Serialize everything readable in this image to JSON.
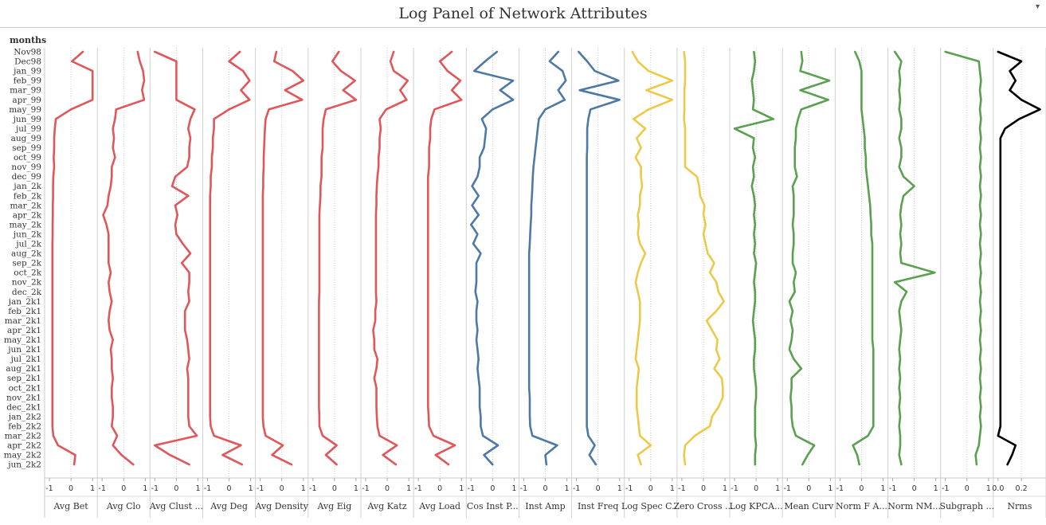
{
  "header": {
    "title": "Log Panel of Network Attributes",
    "row_field_label": "months"
  },
  "chart_data": {
    "type": "line",
    "title": "Log Panel of Network Attributes",
    "row_label": "months",
    "orientation": "vertical",
    "categories": [
      "Nov98",
      "Dec98",
      "jan_99",
      "feb_99",
      "mar_99",
      "apr_99",
      "may_99",
      "jun_99",
      "jul_99",
      "aug_99",
      "sep_99",
      "oct_99",
      "nov_99",
      "dec_99",
      "jan_2k",
      "feb_2k",
      "mar_2k",
      "apr_2k",
      "may_2k",
      "jun_2k",
      "jul_2k",
      "aug_2k",
      "sep_2k",
      "oct_2k",
      "nov_2k",
      "dec_2k",
      "jan_2k1",
      "feb_2k1",
      "mar_2k1",
      "apr_2k1",
      "may_2k1",
      "jun_2k1",
      "jul_2k1",
      "aug_2k1",
      "sep_2k1",
      "oct_2k1",
      "nov_2k1",
      "dec_2k1",
      "jan_2k2",
      "feb_2k2",
      "mar_2k2",
      "apr_2k2",
      "may_2k2",
      "jun_2k2"
    ],
    "grid": true,
    "series": [
      {
        "name": "Avg Bet",
        "color": "#e15759",
        "xlim": [
          -1,
          1
        ],
        "ticks": [
          "-1",
          "0",
          "1"
        ],
        "values": [
          0.55,
          0.05,
          1.0,
          1.0,
          1.0,
          1.0,
          0.0,
          -0.7,
          -0.75,
          -0.78,
          -0.78,
          -0.8,
          -0.78,
          -0.82,
          -0.83,
          -0.83,
          -0.84,
          -0.84,
          -0.85,
          -0.85,
          -0.86,
          -0.86,
          -0.86,
          -0.86,
          -0.86,
          -0.86,
          -0.86,
          -0.86,
          -0.86,
          -0.86,
          -0.86,
          -0.86,
          -0.86,
          -0.86,
          -0.86,
          -0.86,
          -0.86,
          -0.86,
          -0.86,
          -0.86,
          -0.82,
          -0.6,
          0.2,
          0.15
        ]
      },
      {
        "name": "Avg Clo",
        "color": "#e15759",
        "xlim": [
          -1,
          1
        ],
        "ticks": [
          "-1",
          "0",
          "1"
        ],
        "values": [
          0.65,
          0.75,
          0.9,
          0.95,
          0.85,
          0.95,
          -0.35,
          -0.4,
          -0.5,
          -0.45,
          -0.5,
          -0.4,
          -0.55,
          -0.55,
          -0.6,
          -0.7,
          -0.75,
          -0.95,
          -0.8,
          -0.7,
          -0.7,
          -0.7,
          -0.7,
          -0.6,
          -0.7,
          -0.65,
          -0.55,
          -0.65,
          -0.7,
          -0.65,
          -0.5,
          -0.6,
          -0.55,
          -0.55,
          -0.5,
          -0.55,
          -0.55,
          -0.5,
          -0.5,
          -0.55,
          -0.3,
          -0.5,
          -0.1,
          0.45
        ]
      },
      {
        "name": "Avg Clust ...",
        "color": "#e15759",
        "xlim": [
          -1,
          1
        ],
        "ticks": [
          "-1",
          "0",
          "1"
        ],
        "values": [
          -1.0,
          0.0,
          0.0,
          0.0,
          0.0,
          0.0,
          0.85,
          0.65,
          0.55,
          0.65,
          0.6,
          0.6,
          0.5,
          -0.05,
          -0.2,
          0.55,
          -0.05,
          0.05,
          -0.05,
          0.0,
          0.3,
          0.65,
          0.25,
          0.6,
          0.6,
          0.55,
          0.6,
          0.4,
          0.4,
          0.4,
          0.5,
          0.55,
          0.6,
          0.5,
          0.55,
          0.55,
          0.55,
          0.55,
          0.55,
          0.6,
          0.95,
          -1.0,
          -0.3,
          0.6
        ]
      },
      {
        "name": "Avg Deg",
        "color": "#e15759",
        "xlim": [
          -1,
          1
        ],
        "ticks": [
          "-1",
          "0",
          "1"
        ],
        "values": [
          0.5,
          0.0,
          0.65,
          0.95,
          0.55,
          0.95,
          0.0,
          -0.7,
          -0.7,
          -0.75,
          -0.75,
          -0.8,
          -0.8,
          -0.85,
          -0.85,
          -0.88,
          -0.88,
          -0.88,
          -0.88,
          -0.88,
          -0.88,
          -0.88,
          -0.88,
          -0.88,
          -0.88,
          -0.88,
          -0.88,
          -0.88,
          -0.88,
          -0.88,
          -0.88,
          -0.88,
          -0.88,
          -0.88,
          -0.88,
          -0.88,
          -0.88,
          -0.88,
          -0.88,
          -0.85,
          -0.7,
          0.55,
          -0.3,
          0.6
        ]
      },
      {
        "name": "Avg Density",
        "color": "#e15759",
        "xlim": [
          -1,
          1
        ],
        "ticks": [
          "-1",
          "0",
          "1"
        ],
        "values": [
          -0.25,
          -0.35,
          0.5,
          1.0,
          0.15,
          0.95,
          -0.6,
          -0.75,
          -0.78,
          -0.8,
          -0.82,
          -0.84,
          -0.84,
          -0.86,
          -0.86,
          -0.88,
          -0.88,
          -0.88,
          -0.88,
          -0.88,
          -0.88,
          -0.88,
          -0.88,
          -0.88,
          -0.88,
          -0.88,
          -0.88,
          -0.88,
          -0.88,
          -0.88,
          -0.88,
          -0.88,
          -0.88,
          -0.88,
          -0.88,
          -0.88,
          -0.88,
          -0.88,
          -0.88,
          -0.85,
          -0.75,
          0.05,
          -0.45,
          0.45
        ]
      },
      {
        "name": "Avg Eig",
        "color": "#e15759",
        "xlim": [
          -1,
          1
        ],
        "ticks": [
          "-1",
          "0",
          "1"
        ],
        "values": [
          0.2,
          -0.1,
          0.3,
          0.95,
          0.4,
          1.0,
          -0.4,
          -0.5,
          -0.55,
          -0.55,
          -0.55,
          -0.6,
          -0.6,
          -0.6,
          -0.65,
          -0.65,
          -0.68,
          -0.7,
          -0.7,
          -0.7,
          -0.7,
          -0.7,
          -0.7,
          -0.7,
          -0.7,
          -0.7,
          -0.72,
          -0.72,
          -0.72,
          -0.72,
          -0.72,
          -0.72,
          -0.72,
          -0.72,
          -0.72,
          -0.72,
          -0.72,
          -0.72,
          -0.7,
          -0.7,
          -0.55,
          0.1,
          -0.4,
          0.1
        ]
      },
      {
        "name": "Avg Katz",
        "color": "#e15759",
        "xlim": [
          -1,
          1
        ],
        "ticks": [
          "-1",
          "0",
          "1"
        ],
        "values": [
          0.3,
          0.15,
          0.3,
          0.95,
          0.6,
          0.9,
          -0.05,
          -0.35,
          -0.3,
          -0.35,
          -0.35,
          -0.4,
          -0.4,
          -0.45,
          -0.48,
          -0.5,
          -0.5,
          -0.52,
          -0.52,
          -0.52,
          -0.52,
          -0.52,
          -0.52,
          -0.52,
          -0.52,
          -0.52,
          -0.5,
          -0.55,
          -0.55,
          -0.65,
          -0.6,
          -0.6,
          -0.45,
          -0.5,
          -0.6,
          -0.5,
          -0.5,
          -0.5,
          -0.48,
          -0.45,
          -0.35,
          0.45,
          -0.2,
          0.4
        ]
      },
      {
        "name": "Avg Load",
        "color": "#e15759",
        "xlim": [
          -1,
          1
        ],
        "ticks": [
          "-1",
          "0",
          "1"
        ],
        "values": [
          0.55,
          0.0,
          0.35,
          0.95,
          0.55,
          1.0,
          -0.25,
          -0.4,
          -0.45,
          -0.45,
          -0.5,
          -0.5,
          -0.5,
          -0.55,
          -0.55,
          -0.55,
          -0.55,
          -0.55,
          -0.55,
          -0.55,
          -0.55,
          -0.55,
          -0.55,
          -0.55,
          -0.55,
          -0.55,
          -0.55,
          -0.55,
          -0.55,
          -0.55,
          -0.55,
          -0.55,
          -0.55,
          -0.55,
          -0.55,
          -0.55,
          -0.55,
          -0.55,
          -0.52,
          -0.5,
          -0.3,
          0.7,
          -0.2,
          0.4
        ]
      },
      {
        "name": "Cos Inst P...",
        "color": "#4e79a7",
        "xlim": [
          -1,
          1
        ],
        "ticks": [
          "-1",
          "0",
          "1"
        ],
        "values": [
          0.2,
          -0.35,
          -0.85,
          0.95,
          0.35,
          0.95,
          0.0,
          -0.5,
          -0.3,
          -0.35,
          -0.4,
          -0.6,
          -0.6,
          -0.7,
          -0.95,
          -0.65,
          -0.95,
          -0.65,
          -1.0,
          -0.7,
          -0.9,
          -0.55,
          -0.75,
          -0.75,
          -0.75,
          -0.8,
          -0.7,
          -0.75,
          -0.75,
          -0.7,
          -0.75,
          -0.7,
          -0.65,
          -0.7,
          -0.65,
          -0.6,
          -0.6,
          -0.6,
          -0.55,
          -0.55,
          -0.45,
          0.25,
          -0.4,
          0.0
        ]
      },
      {
        "name": "Inst Amp",
        "color": "#4e79a7",
        "xlim": [
          -1,
          1
        ],
        "ticks": [
          "-1",
          "0",
          "1"
        ],
        "values": [
          0.6,
          0.2,
          0.8,
          0.95,
          0.6,
          0.9,
          0.0,
          -0.3,
          -0.35,
          -0.4,
          -0.45,
          -0.5,
          -0.55,
          -0.58,
          -0.6,
          -0.62,
          -0.65,
          -0.65,
          -0.68,
          -0.7,
          -0.72,
          -0.75,
          -0.75,
          -0.75,
          -0.75,
          -0.75,
          -0.75,
          -0.75,
          -0.75,
          -0.75,
          -0.75,
          -0.75,
          -0.75,
          -0.75,
          -0.75,
          -0.75,
          -0.72,
          -0.72,
          -0.72,
          -0.7,
          -0.6,
          0.55,
          0.0,
          0.05
        ]
      },
      {
        "name": "Inst Freq",
        "color": "#4e79a7",
        "xlim": [
          -1,
          1
        ],
        "ticks": [
          "-1",
          "0",
          "1"
        ],
        "values": [
          -0.9,
          -0.5,
          -0.15,
          0.95,
          -0.85,
          1.0,
          -0.35,
          -0.45,
          -0.5,
          -0.5,
          -0.5,
          -0.52,
          -0.52,
          -0.52,
          -0.52,
          -0.52,
          -0.52,
          -0.52,
          -0.52,
          -0.52,
          -0.52,
          -0.52,
          -0.52,
          -0.52,
          -0.52,
          -0.52,
          -0.52,
          -0.52,
          -0.52,
          -0.52,
          -0.52,
          -0.52,
          -0.52,
          -0.52,
          -0.52,
          -0.52,
          -0.52,
          -0.52,
          -0.52,
          -0.52,
          -0.45,
          -0.15,
          -0.4,
          -0.1
        ]
      },
      {
        "name": "Log Spec C...",
        "color": "#edc948",
        "xlim": [
          -1,
          1
        ],
        "ticks": [
          "-1",
          "0",
          "1"
        ],
        "values": [
          -0.85,
          -0.6,
          -0.1,
          1.0,
          -0.2,
          1.0,
          -0.1,
          -0.8,
          -0.25,
          -0.65,
          -0.45,
          -0.7,
          -0.45,
          -0.45,
          -0.4,
          -0.5,
          -0.5,
          -0.6,
          -0.55,
          -0.6,
          -0.5,
          -0.25,
          -0.45,
          -0.6,
          -0.7,
          -0.6,
          -0.5,
          -0.5,
          -0.5,
          -0.55,
          -0.6,
          -0.65,
          -0.7,
          -0.55,
          -0.6,
          -0.65,
          -0.65,
          -0.65,
          -0.6,
          -0.55,
          -0.5,
          0.0,
          -0.6,
          -0.45
        ]
      },
      {
        "name": "Zero Cross ...",
        "color": "#edc948",
        "xlim": [
          -1,
          1
        ],
        "ticks": [
          "-1",
          "0",
          "1"
        ],
        "values": [
          -0.9,
          -0.85,
          -0.85,
          -0.85,
          -0.88,
          -0.88,
          -0.88,
          -0.9,
          -0.85,
          -0.85,
          -0.85,
          -0.85,
          -0.85,
          -0.3,
          -0.2,
          -0.15,
          0.05,
          0.0,
          0.1,
          0.0,
          0.1,
          0.2,
          0.5,
          0.3,
          0.6,
          0.7,
          0.95,
          0.6,
          0.15,
          0.4,
          0.65,
          0.6,
          0.75,
          0.5,
          0.85,
          0.9,
          0.9,
          0.7,
          0.4,
          0.3,
          -0.4,
          -0.85,
          -0.9,
          -0.85
        ]
      },
      {
        "name": "Log KPCA...",
        "color": "#59a14f",
        "xlim": [
          -1,
          1
        ],
        "ticks": [
          "-1",
          "0",
          "1"
        ],
        "values": [
          -0.1,
          -0.05,
          -0.1,
          -0.2,
          -0.15,
          -0.1,
          -0.15,
          0.8,
          -1.0,
          -0.1,
          -0.15,
          -0.05,
          -0.15,
          -0.1,
          -0.2,
          -0.1,
          -0.05,
          -0.1,
          -0.05,
          -0.1,
          -0.05,
          -0.1,
          0.0,
          -0.05,
          -0.1,
          -0.05,
          -0.05,
          -0.1,
          -0.15,
          -0.1,
          -0.05,
          -0.05,
          -0.1,
          -0.1,
          -0.05,
          0.0,
          0.0,
          -0.05,
          -0.05,
          -0.05,
          -0.05,
          0.0,
          -0.05,
          -0.05
        ]
      },
      {
        "name": "Mean Curv",
        "color": "#59a14f",
        "xlim": [
          -1,
          1
        ],
        "ticks": [
          "-1",
          "0",
          "1"
        ],
        "values": [
          -0.35,
          -0.3,
          -0.4,
          0.95,
          -0.4,
          0.9,
          -0.35,
          -0.5,
          -0.6,
          -0.6,
          -0.65,
          -0.65,
          -0.65,
          -0.55,
          -0.75,
          -0.7,
          -0.7,
          -0.7,
          -0.75,
          -0.7,
          -0.7,
          -0.75,
          -0.75,
          -0.6,
          -0.7,
          -0.65,
          -0.9,
          -0.75,
          -0.85,
          -0.75,
          -0.8,
          -0.9,
          -0.7,
          -0.35,
          -0.8,
          -0.8,
          -0.85,
          -0.8,
          -0.8,
          -0.75,
          -0.6,
          0.25,
          -0.05,
          -0.3
        ]
      },
      {
        "name": "Norm F A...",
        "color": "#59a14f",
        "xlim": [
          -1,
          1
        ],
        "ticks": [
          "-1",
          "0",
          "1"
        ],
        "values": [
          -0.3,
          -0.1,
          0.0,
          0.0,
          0.0,
          0.0,
          0.0,
          0.05,
          0.1,
          0.15,
          0.15,
          0.2,
          0.2,
          0.25,
          0.3,
          0.35,
          0.4,
          0.42,
          0.45,
          0.45,
          0.5,
          0.5,
          0.5,
          0.5,
          0.5,
          0.5,
          0.5,
          0.5,
          0.5,
          0.5,
          0.5,
          0.55,
          0.55,
          0.55,
          0.55,
          0.55,
          0.55,
          0.55,
          0.55,
          0.55,
          0.3,
          -0.4,
          -0.2,
          -0.1
        ]
      },
      {
        "name": "Norm NM...",
        "color": "#59a14f",
        "xlim": [
          -1,
          1
        ],
        "ticks": [
          "-1",
          "0",
          "1"
        ],
        "values": [
          -0.9,
          -0.6,
          -0.7,
          -0.65,
          -0.7,
          -0.65,
          -0.7,
          -0.6,
          -0.6,
          -0.7,
          -0.6,
          -0.6,
          -0.7,
          -0.5,
          0.0,
          -0.5,
          -0.6,
          -0.65,
          -0.6,
          -0.65,
          -0.6,
          -0.65,
          -0.6,
          0.95,
          -0.9,
          -0.35,
          -0.6,
          -0.7,
          -0.65,
          -0.6,
          -0.65,
          -0.7,
          -0.65,
          -0.7,
          -0.65,
          -0.7,
          -0.65,
          -0.7,
          -0.65,
          -0.7,
          -0.65,
          -0.65,
          -0.7,
          -0.6
        ]
      },
      {
        "name": "Subgraph ...",
        "color": "#59a14f",
        "xlim": [
          -1,
          1
        ],
        "ticks": [
          "-1",
          "0",
          "1"
        ],
        "values": [
          -1.0,
          0.55,
          0.6,
          0.65,
          0.6,
          0.65,
          0.6,
          0.65,
          0.6,
          0.65,
          0.6,
          0.65,
          0.6,
          0.65,
          0.6,
          0.65,
          0.6,
          0.65,
          0.6,
          0.65,
          0.6,
          0.65,
          0.6,
          0.65,
          0.6,
          0.65,
          0.6,
          0.65,
          0.6,
          0.65,
          0.6,
          0.65,
          0.6,
          0.65,
          0.6,
          0.65,
          0.6,
          0.65,
          0.6,
          0.65,
          0.6,
          0.55,
          0.4,
          0.45
        ]
      },
      {
        "name": "Nrms",
        "color": "#000000",
        "xlim": [
          0,
          0.37
        ],
        "ticks": [
          "0.0",
          "0.2"
        ],
        "values": [
          0.0,
          0.2,
          0.1,
          0.15,
          0.1,
          0.2,
          0.36,
          0.18,
          0.06,
          0.02,
          0.02,
          0.02,
          0.02,
          0.02,
          0.02,
          0.02,
          0.02,
          0.02,
          0.02,
          0.02,
          0.02,
          0.02,
          0.02,
          0.02,
          0.02,
          0.02,
          0.02,
          0.02,
          0.02,
          0.02,
          0.02,
          0.02,
          0.02,
          0.02,
          0.02,
          0.02,
          0.02,
          0.02,
          0.02,
          0.02,
          0.0,
          0.15,
          0.12,
          0.08
        ]
      }
    ]
  }
}
